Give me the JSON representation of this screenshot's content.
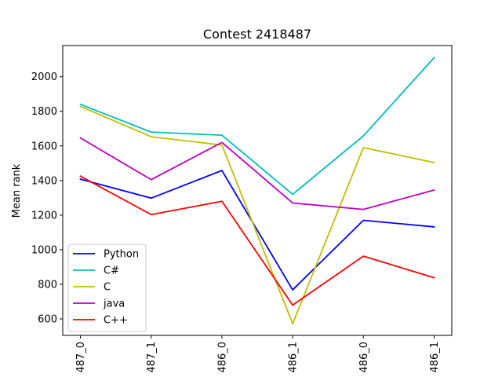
{
  "chart_data": {
    "type": "line",
    "title": "Contest 2418487",
    "xlabel": "",
    "ylabel": "Mean rank",
    "categories": [
      "487_0",
      "487_1",
      "486_0",
      "486_1",
      "486_0",
      "486_1"
    ],
    "ylim": [
      505,
      2180
    ],
    "yticks": [
      600,
      800,
      1000,
      1200,
      1400,
      1600,
      1800,
      2000
    ],
    "grid": false,
    "legend_position": "lower-left",
    "series": [
      {
        "name": "Python",
        "color": "#0000ff",
        "values": [
          1408,
          1298,
          1458,
          768,
          1170,
          1132
        ]
      },
      {
        "name": "C#",
        "color": "#00bfbf",
        "values": [
          1840,
          1680,
          1662,
          1320,
          1658,
          2110
        ]
      },
      {
        "name": "C",
        "color": "#bfbf00",
        "values": [
          1828,
          1653,
          1605,
          572,
          1590,
          1504
        ]
      },
      {
        "name": "java",
        "color": "#bf00bf",
        "values": [
          1646,
          1405,
          1620,
          1270,
          1233,
          1345
        ]
      },
      {
        "name": "C++",
        "color": "#ff0000",
        "values": [
          1425,
          1203,
          1280,
          680,
          963,
          838
        ]
      }
    ]
  }
}
